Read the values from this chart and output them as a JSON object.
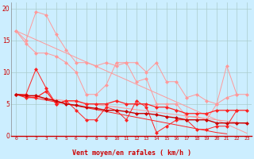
{
  "background_color": "#cceeff",
  "grid_color": "#aacccc",
  "xlabel": "Vent moyen/en rafales ( km/h )",
  "x": [
    0,
    1,
    2,
    3,
    4,
    5,
    6,
    7,
    8,
    9,
    10,
    11,
    12,
    13,
    14,
    15,
    16,
    17,
    18,
    19,
    20,
    21,
    22,
    23
  ],
  "line_pink1_y": [
    16.5,
    15.0,
    19.5,
    19.0,
    16.0,
    13.5,
    11.5,
    11.5,
    11.0,
    11.5,
    11.0,
    11.5,
    11.5,
    10.0,
    11.5,
    8.5,
    8.5,
    6.0,
    6.5,
    5.5,
    5.0,
    11.0,
    6.5,
    6.5
  ],
  "line_pink2_y": [
    16.5,
    14.5,
    13.0,
    13.0,
    12.5,
    11.5,
    10.0,
    6.5,
    6.5,
    8.0,
    11.5,
    11.5,
    8.5,
    9.0,
    5.0,
    5.0,
    5.0,
    3.0,
    3.0,
    2.5,
    5.0,
    6.0,
    6.5,
    null
  ],
  "diag_pink_y": [
    16.5,
    15.8,
    15.1,
    14.4,
    13.7,
    13.0,
    12.3,
    11.6,
    10.9,
    10.2,
    9.5,
    8.8,
    8.1,
    7.4,
    6.7,
    6.0,
    5.3,
    4.6,
    3.9,
    3.2,
    2.5,
    1.8,
    1.1,
    0.4
  ],
  "diag_pink2_y": [
    6.5,
    6.3,
    6.1,
    5.9,
    5.7,
    5.5,
    5.3,
    5.1,
    4.9,
    4.7,
    4.5,
    4.3,
    4.1,
    3.9,
    3.7,
    3.5,
    3.3,
    3.1,
    2.9,
    2.7,
    2.5,
    2.3,
    2.1,
    1.9
  ],
  "line_red1_y": [
    6.5,
    6.5,
    10.5,
    7.5,
    5.0,
    5.5,
    4.0,
    2.5,
    2.5,
    4.5,
    4.0,
    2.5,
    5.5,
    4.5,
    0.5,
    1.5,
    2.5,
    2.5,
    1.0,
    1.0,
    1.5,
    1.5,
    4.0,
    null
  ],
  "line_red2_y": [
    6.5,
    6.0,
    6.0,
    7.0,
    5.0,
    5.5,
    5.5,
    5.0,
    5.0,
    5.0,
    5.5,
    5.0,
    5.0,
    5.0,
    4.5,
    4.5,
    4.0,
    3.5,
    3.5,
    3.5,
    4.0,
    4.0,
    4.0,
    4.0
  ],
  "diag_red_y": [
    6.5,
    6.2,
    5.9,
    5.6,
    5.3,
    5.0,
    4.7,
    4.4,
    4.1,
    3.8,
    3.5,
    3.2,
    2.9,
    2.6,
    2.3,
    2.0,
    1.7,
    1.4,
    1.1,
    0.8,
    0.5,
    0.3,
    null,
    null
  ],
  "line_darkred_y": [
    6.5,
    6.3,
    6.3,
    5.8,
    5.5,
    5.0,
    4.8,
    4.5,
    4.3,
    4.0,
    4.0,
    3.8,
    3.5,
    3.5,
    3.3,
    3.0,
    2.8,
    2.5,
    2.5,
    2.5,
    2.0,
    2.0,
    2.0,
    2.0
  ],
  "color_pink": "#ff9999",
  "color_red": "#ff2222",
  "color_darkred": "#cc0000",
  "ylim": [
    0,
    21
  ],
  "yticks": [
    0,
    5,
    10,
    15,
    20
  ],
  "markersize": 2.5
}
